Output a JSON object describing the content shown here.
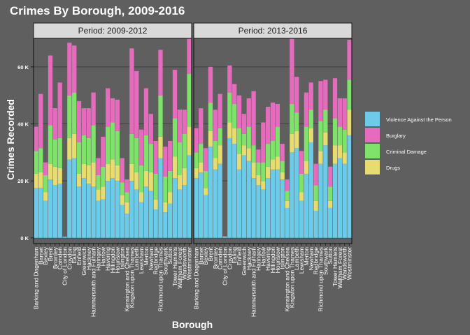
{
  "chart_data": {
    "type": "bar",
    "stacked": true,
    "title": "Crimes By Borough, 2009-2016",
    "xlabel": "Borough",
    "ylabel": "Crimes Recorded",
    "ylim": [
      -2000,
      70000
    ],
    "yticks": [
      0,
      20000,
      40000,
      60000
    ],
    "ytick_labels": [
      "0 K",
      "20 K",
      "40 K",
      "60 K"
    ],
    "colors": {
      "Violence Against the Person": "#6ccbe8",
      "Burglary": "#e56bbd",
      "Criminal Damage": "#7fe26b",
      "Drugs": "#e6dc6f",
      "background": "#5f5f5f",
      "panel": "#5f5f5f",
      "strip": "#d9d9d9",
      "grid": "#3f3f3f"
    },
    "legend": {
      "position": "right",
      "entries": [
        "Violence Against the Person",
        "Burglary",
        "Criminal Damage",
        "Drugs"
      ]
    },
    "series_order": [
      "Violence Against the Person",
      "Drugs",
      "Criminal Damage",
      "Burglary"
    ],
    "categories": [
      "Barking and Dagenham",
      "Barnet",
      "Bexley",
      "Brent",
      "Bromley",
      "Camden",
      "City of London",
      "Croydon",
      "Ealing",
      "Enfield",
      "Greenwich",
      "Hackney",
      "Hammersmith and Fulham",
      "Haringey",
      "Harrow",
      "Havering",
      "Hillingdon",
      "Hounslow",
      "Islington",
      "Kensington and Chelsea",
      "Kingston upon Thames",
      "Lambeth",
      "Lewisham",
      "Merton",
      "Newham",
      "Redbridge",
      "Richmond upon Thames",
      "Southwark",
      "Sutton",
      "Tower Hamlets",
      "Waltham Forest",
      "Wandsworth",
      "Westminster"
    ],
    "panels": [
      {
        "title": "Period: 2009-2012",
        "series": [
          {
            "name": "Violence Against the Person",
            "values": [
              17500,
              17500,
              13000,
              20500,
              18500,
              19000,
              300,
              27500,
              28000,
              18000,
              21000,
              19000,
              18000,
              13000,
              13500,
              20000,
              21000,
              20000,
              11500,
              8500,
              20000,
              17000,
              12500,
              18000,
              16500,
              10000,
              28000,
              9000,
              12000,
              21000,
              17000,
              18500,
              29000
            ]
          },
          {
            "name": "Drugs",
            "values": [
              5000,
              5500,
              3000,
              5500,
              6500,
              5500,
              50,
              7500,
              8500,
              4500,
              5000,
              6500,
              8500,
              4000,
              4500,
              6000,
              6500,
              5500,
              3500,
              4000,
              6000,
              6000,
              3500,
              5500,
              6500,
              3500,
              7500,
              3500,
              4000,
              7500,
              5000,
              6000,
              10000
            ]
          },
          {
            "name": "Criminal Damage",
            "values": [
              8000,
              8500,
              6000,
              13500,
              9500,
              10500,
              50,
              15000,
              14500,
              11000,
              10000,
              9500,
              13000,
              5000,
              7000,
              13000,
              13000,
              12000,
              4500,
              3500,
              10500,
              12000,
              9500,
              12500,
              10000,
              9000,
              14500,
              9000,
              7500,
              13500,
              11500,
              12000,
              18500
            ]
          },
          {
            "name": "Burglary",
            "values": [
              8500,
              19000,
              4500,
              24500,
              11000,
              19500,
              50,
              18500,
              16500,
              14500,
              9500,
              10500,
              11500,
              6000,
              10500,
              13500,
              8500,
              11000,
              8500,
              4500,
              30000,
              23500,
              12500,
              16500,
              10500,
              11500,
              16000,
              10500,
              10500,
              17000,
              11500,
              8500,
              12500
            ]
          }
        ]
      },
      {
        "title": "Period: 2013-2016",
        "series": [
          {
            "name": "Violence Against the Person",
            "values": [
              21000,
              23000,
              15000,
              32000,
              24000,
              26000,
              400,
              35000,
              33000,
              24000,
              29000,
              27000,
              21000,
              18500,
              17000,
              21000,
              24000,
              24000,
              20500,
              10500,
              30000,
              31500,
              13000,
              22500,
              33500,
              9500,
              26000,
              32500,
              10500,
              26000,
              28000,
              26000,
              36000
            ]
          },
          {
            "name": "Drugs",
            "values": [
              3500,
              3500,
              2500,
              5500,
              4000,
              6500,
              50,
              5500,
              5500,
              5500,
              3500,
              4500,
              5500,
              3500,
              3000,
              4000,
              3500,
              4500,
              2500,
              2500,
              6500,
              6000,
              3000,
              4500,
              5000,
              3500,
              4500,
              4500,
              2500,
              6500,
              4500,
              4000,
              9000
            ]
          },
          {
            "name": "Criminal Damage",
            "values": [
              5500,
              6500,
              6000,
              10000,
              6000,
              6000,
              50,
              10500,
              8500,
              9000,
              4000,
              7500,
              6000,
              4500,
              6500,
              8000,
              6500,
              10500,
              4000,
              3500,
              10500,
              6500,
              6500,
              12000,
              6500,
              5500,
              10500,
              8000,
              5000,
              9500,
              6500,
              8000,
              10500
            ]
          },
          {
            "name": "Burglary",
            "values": [
              8500,
              12500,
              8000,
              12500,
              11000,
              12000,
              50,
              9500,
              7000,
              11500,
              7000,
              10000,
              19000,
              4500,
              14000,
              13000,
              13500,
              8000,
              6000,
              4000,
              23000,
              12500,
              8000,
              12000,
              9500,
              7500,
              14000,
              10500,
              7000,
              14000,
              10000,
              11000,
              14000
            ]
          }
        ]
      }
    ]
  }
}
